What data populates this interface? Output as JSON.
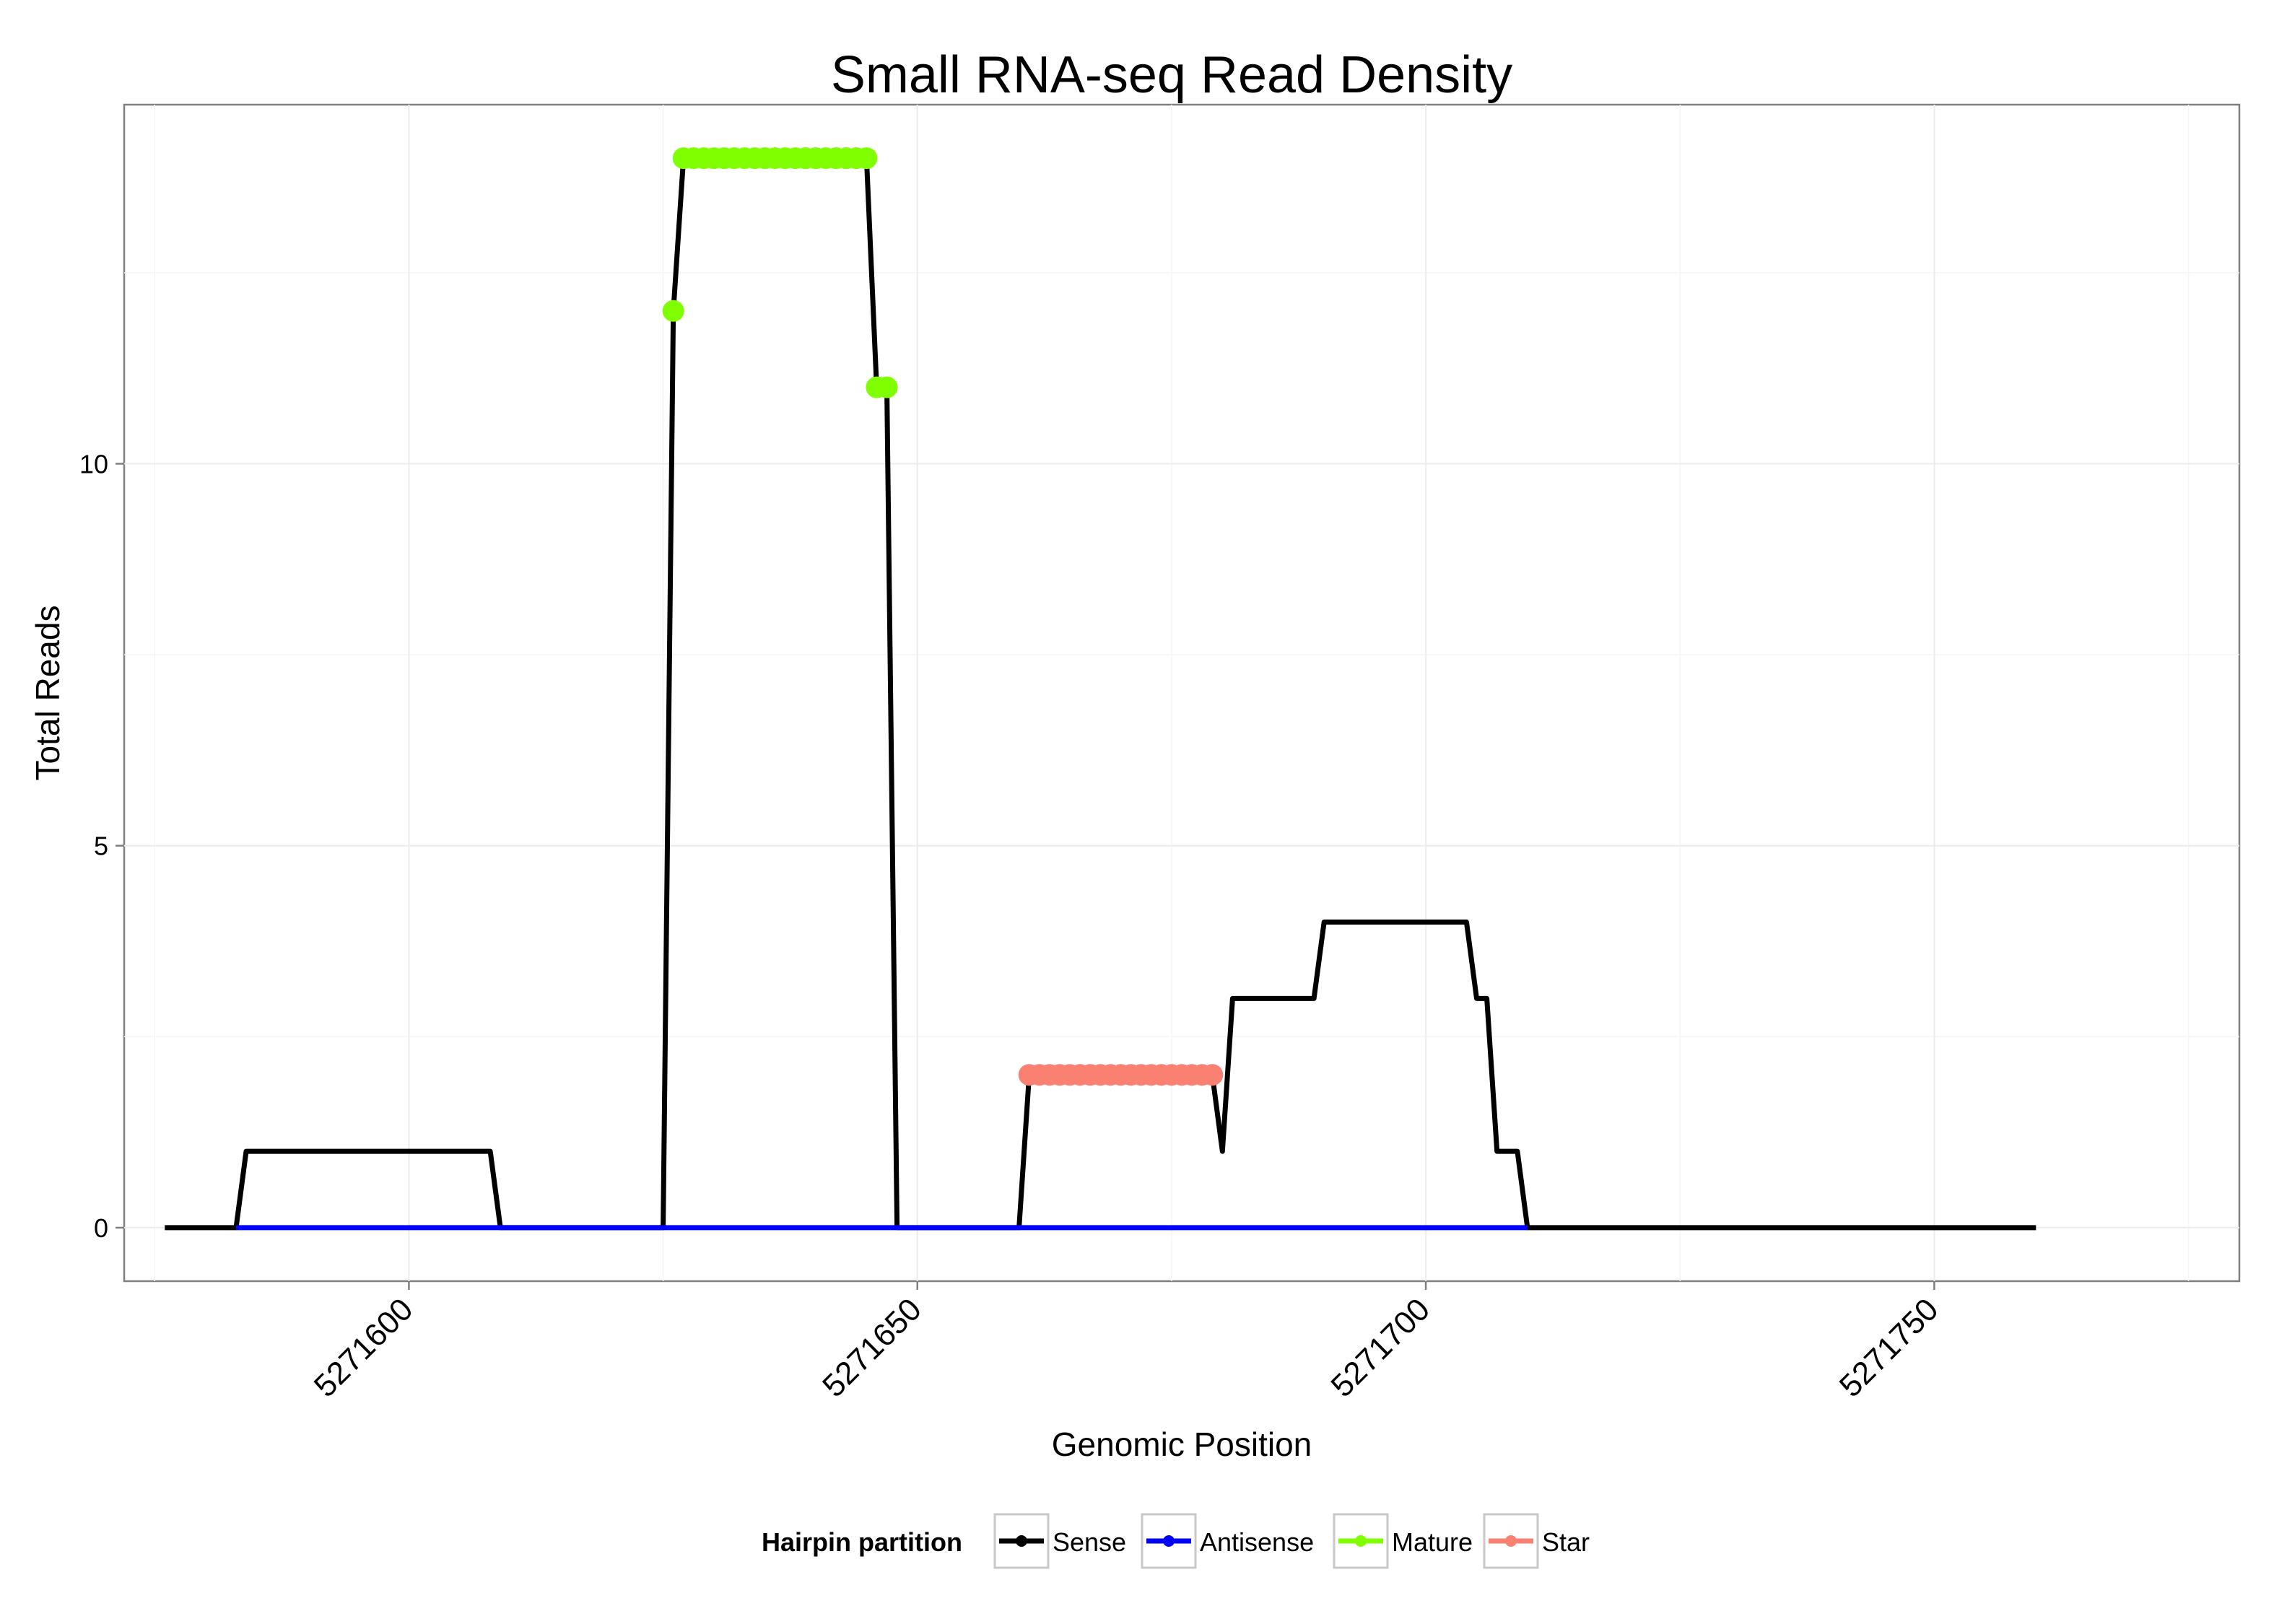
{
  "chart_data": {
    "type": "line",
    "title": "Small RNA-seq Read Density",
    "xlabel": "Genomic Position",
    "ylabel": "Total Reads",
    "xlim": [
      5271572,
      5271780
    ],
    "ylim": [
      -0.7,
      14.7
    ],
    "x_ticks": [
      5271600,
      5271650,
      5271700,
      5271750
    ],
    "x_tick_labels": [
      "5271600",
      "5271650",
      "5271700",
      "5271750"
    ],
    "y_ticks": [
      0,
      5,
      10
    ],
    "y_tick_labels": [
      "0",
      "5",
      "10"
    ],
    "grid": true,
    "legend": {
      "title": "Hairpin partition",
      "position": "bottom",
      "entries": [
        "Sense",
        "Antisense",
        "Mature",
        "Star"
      ]
    },
    "colors": {
      "Sense": "#000000",
      "Antisense": "#0000ff",
      "Mature": "#7fff00",
      "Star": "#fa8072"
    },
    "series": [
      {
        "name": "Sense",
        "style": "line",
        "x": [
          5271576,
          5271583,
          5271584,
          5271608,
          5271609,
          5271625,
          5271626,
          5271627,
          5271645,
          5271646,
          5271647,
          5271648,
          5271660,
          5271661,
          5271679,
          5271680,
          5271681,
          5271689,
          5271690,
          5271704,
          5271705,
          5271706,
          5271707,
          5271709,
          5271710,
          5271760
        ],
        "y": [
          0,
          0,
          1,
          1,
          0,
          0,
          12,
          14,
          14,
          11,
          11,
          0,
          0,
          2,
          2,
          1,
          3,
          3,
          4,
          4,
          3,
          3,
          1,
          1,
          0,
          0
        ]
      },
      {
        "name": "Antisense",
        "style": "line",
        "x": [
          5271583,
          5271710
        ],
        "y": [
          0,
          0
        ]
      },
      {
        "name": "Mature",
        "style": "points",
        "x": [
          5271626,
          5271627,
          5271628,
          5271629,
          5271630,
          5271631,
          5271632,
          5271633,
          5271634,
          5271635,
          5271636,
          5271637,
          5271638,
          5271639,
          5271640,
          5271641,
          5271642,
          5271643,
          5271644,
          5271645,
          5271646,
          5271647
        ],
        "y": [
          12,
          14,
          14,
          14,
          14,
          14,
          14,
          14,
          14,
          14,
          14,
          14,
          14,
          14,
          14,
          14,
          14,
          14,
          14,
          14,
          11,
          11
        ]
      },
      {
        "name": "Star",
        "style": "points",
        "x": [
          5271661,
          5271662,
          5271663,
          5271664,
          5271665,
          5271666,
          5271667,
          5271668,
          5271669,
          5271670,
          5271671,
          5271672,
          5271673,
          5271674,
          5271675,
          5271676,
          5271677,
          5271678,
          5271679
        ],
        "y": [
          2,
          2,
          2,
          2,
          2,
          2,
          2,
          2,
          2,
          2,
          2,
          2,
          2,
          2,
          2,
          2,
          2,
          2,
          2
        ]
      }
    ]
  }
}
